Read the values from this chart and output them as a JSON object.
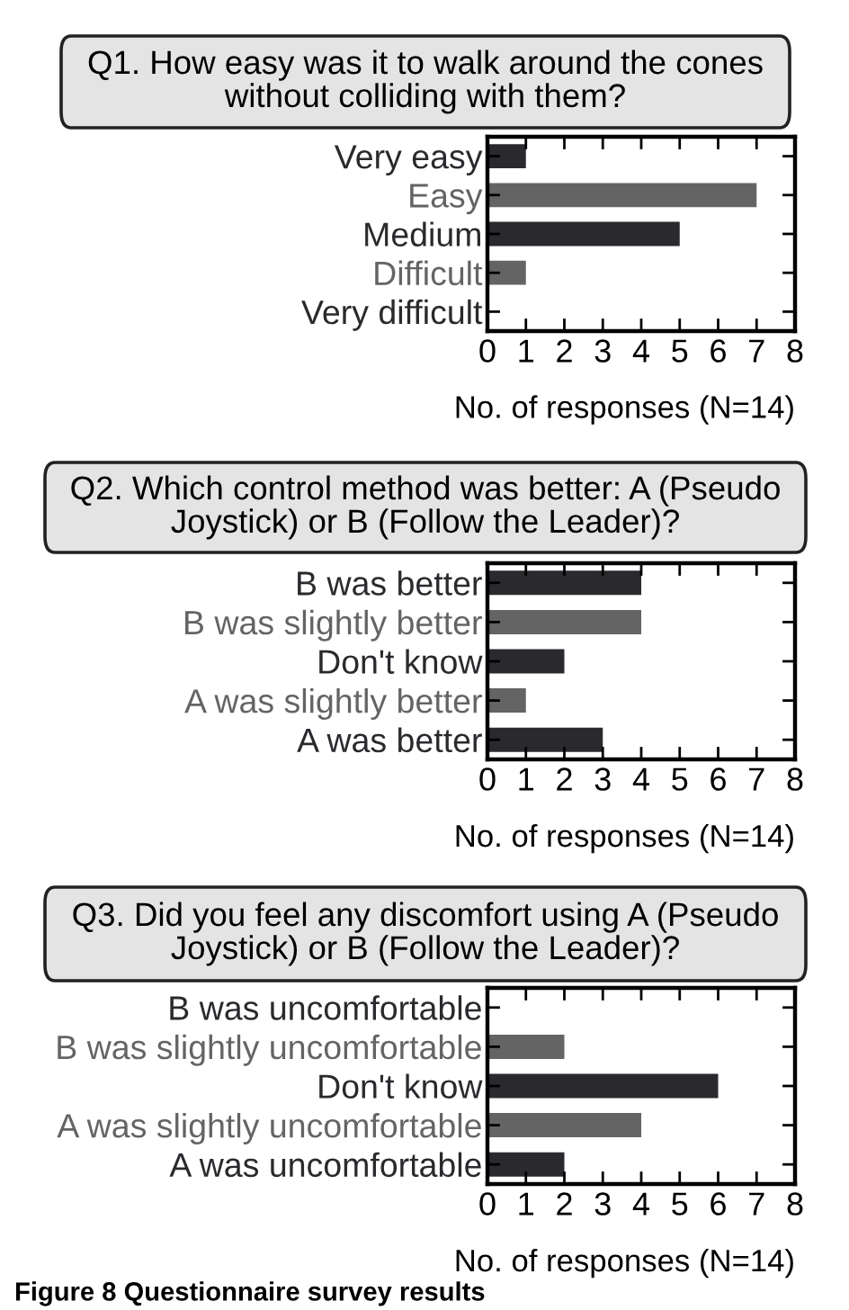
{
  "chart_data": [
    {
      "type": "bar",
      "orientation": "horizontal",
      "title": "Q1. How easy was it to walk around the cones\nwithout colliding with them?",
      "categories": [
        "Very easy",
        "Easy",
        "Medium",
        "Difficult",
        "Very difficult"
      ],
      "values": [
        1,
        7,
        5,
        1,
        0
      ],
      "colors": [
        "#2a2a2e",
        "#646464",
        "#2a2a2e",
        "#646464",
        "#2a2a2e"
      ],
      "xlim": [
        0,
        8
      ],
      "xticks": [
        0,
        1,
        2,
        3,
        4,
        5,
        6,
        7,
        8
      ],
      "xlabel": "No. of responses (N=14)",
      "grid": false,
      "legend": false
    },
    {
      "type": "bar",
      "orientation": "horizontal",
      "title": "Q2. Which control method was better: A (Pseudo\nJoystick) or B (Follow the Leader)?",
      "categories": [
        "B was better",
        "B was slightly better",
        "Don't know",
        "A was slightly better",
        "A was better"
      ],
      "values": [
        4,
        4,
        2,
        1,
        3
      ],
      "colors": [
        "#2a2a2e",
        "#646464",
        "#2a2a2e",
        "#646464",
        "#2a2a2e"
      ],
      "xlim": [
        0,
        8
      ],
      "xticks": [
        0,
        1,
        2,
        3,
        4,
        5,
        6,
        7,
        8
      ],
      "xlabel": "No. of responses (N=14)",
      "grid": false,
      "legend": false
    },
    {
      "type": "bar",
      "orientation": "horizontal",
      "title": "Q3. Did you feel any discomfort using A (Pseudo\nJoystick) or B (Follow the Leader)?",
      "categories": [
        "B was uncomfortable",
        "B was slightly uncomfortable",
        "Don't know",
        "A was slightly uncomfortable",
        "A was uncomfortable"
      ],
      "values": [
        0,
        2,
        6,
        4,
        2
      ],
      "colors": [
        "#2a2a2e",
        "#646464",
        "#2a2a2e",
        "#646464",
        "#2a2a2e"
      ],
      "xlim": [
        0,
        8
      ],
      "xticks": [
        0,
        1,
        2,
        3,
        4,
        5,
        6,
        7,
        8
      ],
      "xlabel": "No. of responses (N=14)",
      "grid": false,
      "legend": false,
      "annotations": [
        "Figure 8 Questionnaire survey results"
      ]
    }
  ]
}
